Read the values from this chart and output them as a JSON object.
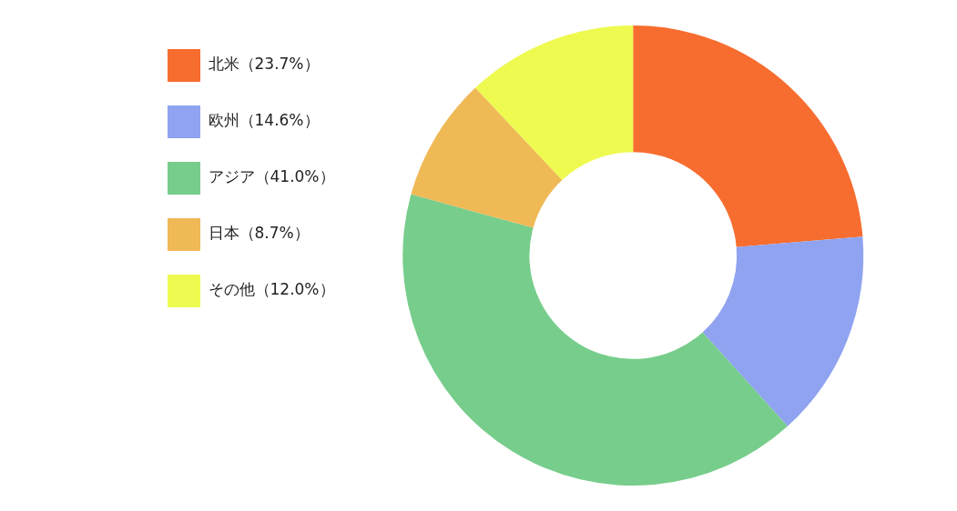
{
  "chart_data": {
    "type": "donut",
    "categories": [
      "北米（23.7%）",
      "欧州（14.6%）",
      "アジア（41.0%）",
      "日本（8.7%）",
      "その他（12.0%）"
    ],
    "values": [
      23.7,
      14.6,
      41.0,
      8.7,
      12.0
    ],
    "colors": [
      "#f76d2f",
      "#8fa3f0",
      "#77cd8b",
      "#efb956",
      "#eefa50"
    ],
    "legend": "left"
  }
}
